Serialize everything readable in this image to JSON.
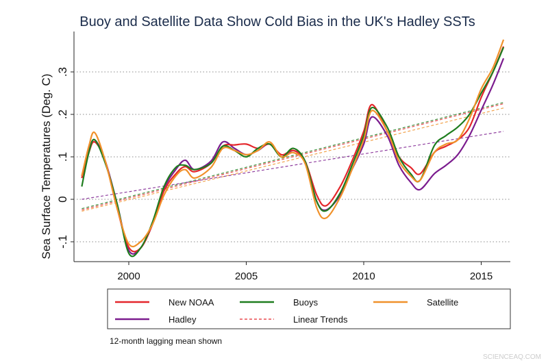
{
  "chart_data": {
    "type": "line",
    "title": "Buoy and Satellite Data Show Cold Bias in the UK's Hadley SSTs",
    "ylabel": "Sea Surface Temperatures (Deg. C)",
    "xlabel": "",
    "xlim": [
      1997.6,
      2016.3
    ],
    "ylim": [
      -0.148,
      0.388
    ],
    "xticks": [
      2000,
      2005,
      2010,
      2015
    ],
    "xtick_labels": [
      "2000",
      "2005",
      "2010",
      "2015"
    ],
    "yticks": [
      -0.1,
      0,
      0.1,
      0.2,
      0.3
    ],
    "ytick_labels": [
      "-.1",
      "0",
      ".1",
      ".2",
      ".3"
    ],
    "grid": "horizontal dotted",
    "legend_position": "bottom",
    "note": "12-month lagging mean shown",
    "x": [
      1998,
      1998.3,
      1998.55,
      1999,
      1999.5,
      2000,
      2000.5,
      2001,
      2001.5,
      2002,
      2002.4,
      2002.8,
      2003.5,
      2004,
      2004.5,
      2005,
      2005.5,
      2006,
      2006.5,
      2007,
      2007.5,
      2008,
      2008.4,
      2009,
      2009.5,
      2010,
      2010.35,
      2011,
      2011.5,
      2012,
      2012.4,
      2013,
      2013.5,
      2014,
      2014.5,
      2015,
      2015.5,
      2015.95
    ],
    "series": [
      {
        "name": "New NOAA",
        "color": "#e4262b",
        "values": [
          0.05,
          0.11,
          0.135,
          0.09,
          -0.02,
          -0.113,
          -0.115,
          -0.06,
          0.02,
          0.06,
          0.077,
          0.065,
          0.085,
          0.125,
          0.128,
          0.13,
          0.12,
          0.13,
          0.105,
          0.115,
          0.09,
          0.01,
          -0.015,
          0.03,
          0.09,
          0.16,
          0.223,
          0.16,
          0.1,
          0.075,
          0.06,
          0.11,
          0.125,
          0.14,
          0.17,
          0.24,
          0.3,
          0.36
        ],
        "trend": [
          -0.025,
          0.225
        ]
      },
      {
        "name": "Buoys",
        "color": "#1e7d1e",
        "values": [
          0.03,
          0.11,
          0.14,
          0.085,
          -0.01,
          -0.127,
          -0.115,
          -0.055,
          0.03,
          0.075,
          0.08,
          0.07,
          0.085,
          0.125,
          0.115,
          0.1,
          0.12,
          0.13,
          0.1,
          0.12,
          0.09,
          -0.005,
          -0.027,
          0.015,
          0.08,
          0.15,
          0.216,
          0.17,
          0.1,
          0.06,
          0.045,
          0.126,
          0.15,
          0.17,
          0.2,
          0.25,
          0.3,
          0.358
        ],
        "trend": [
          -0.022,
          0.228
        ]
      },
      {
        "name": "Satellite",
        "color": "#f0912a",
        "values": [
          0.055,
          0.125,
          0.157,
          0.09,
          -0.02,
          -0.105,
          -0.1,
          -0.06,
          0.01,
          0.055,
          0.07,
          0.05,
          0.075,
          0.12,
          0.115,
          0.105,
          0.115,
          0.135,
          0.1,
          0.11,
          0.085,
          -0.02,
          -0.044,
          0.005,
          0.07,
          0.14,
          0.209,
          0.16,
          0.09,
          0.055,
          0.045,
          0.11,
          0.13,
          0.14,
          0.19,
          0.26,
          0.31,
          0.376
        ],
        "trend": [
          -0.028,
          0.215
        ]
      },
      {
        "name": "Hadley",
        "color": "#7b1c8e",
        "values": [
          0.055,
          0.115,
          0.14,
          0.09,
          -0.01,
          -0.12,
          -0.115,
          -0.06,
          0.025,
          0.07,
          0.092,
          0.07,
          0.09,
          0.135,
          0.12,
          0.105,
          0.115,
          0.13,
          0.1,
          0.115,
          0.09,
          -0.005,
          -0.025,
          0.01,
          0.07,
          0.13,
          0.194,
          0.15,
          0.08,
          0.04,
          0.023,
          0.06,
          0.08,
          0.105,
          0.15,
          0.21,
          0.27,
          0.332
        ],
        "trend": [
          0.0,
          0.16
        ]
      }
    ],
    "legend": [
      {
        "label": "New NOAA",
        "color": "#e4262b",
        "style": "solid"
      },
      {
        "label": "Buoys",
        "color": "#1e7d1e",
        "style": "solid"
      },
      {
        "label": "Satellite",
        "color": "#f0912a",
        "style": "solid"
      },
      {
        "label": "Hadley",
        "color": "#7b1c8e",
        "style": "solid"
      },
      {
        "label": "Linear Trends",
        "color": "#e4262b",
        "style": "dashed"
      }
    ]
  },
  "watermark": "SCIENCEAQ.COM"
}
